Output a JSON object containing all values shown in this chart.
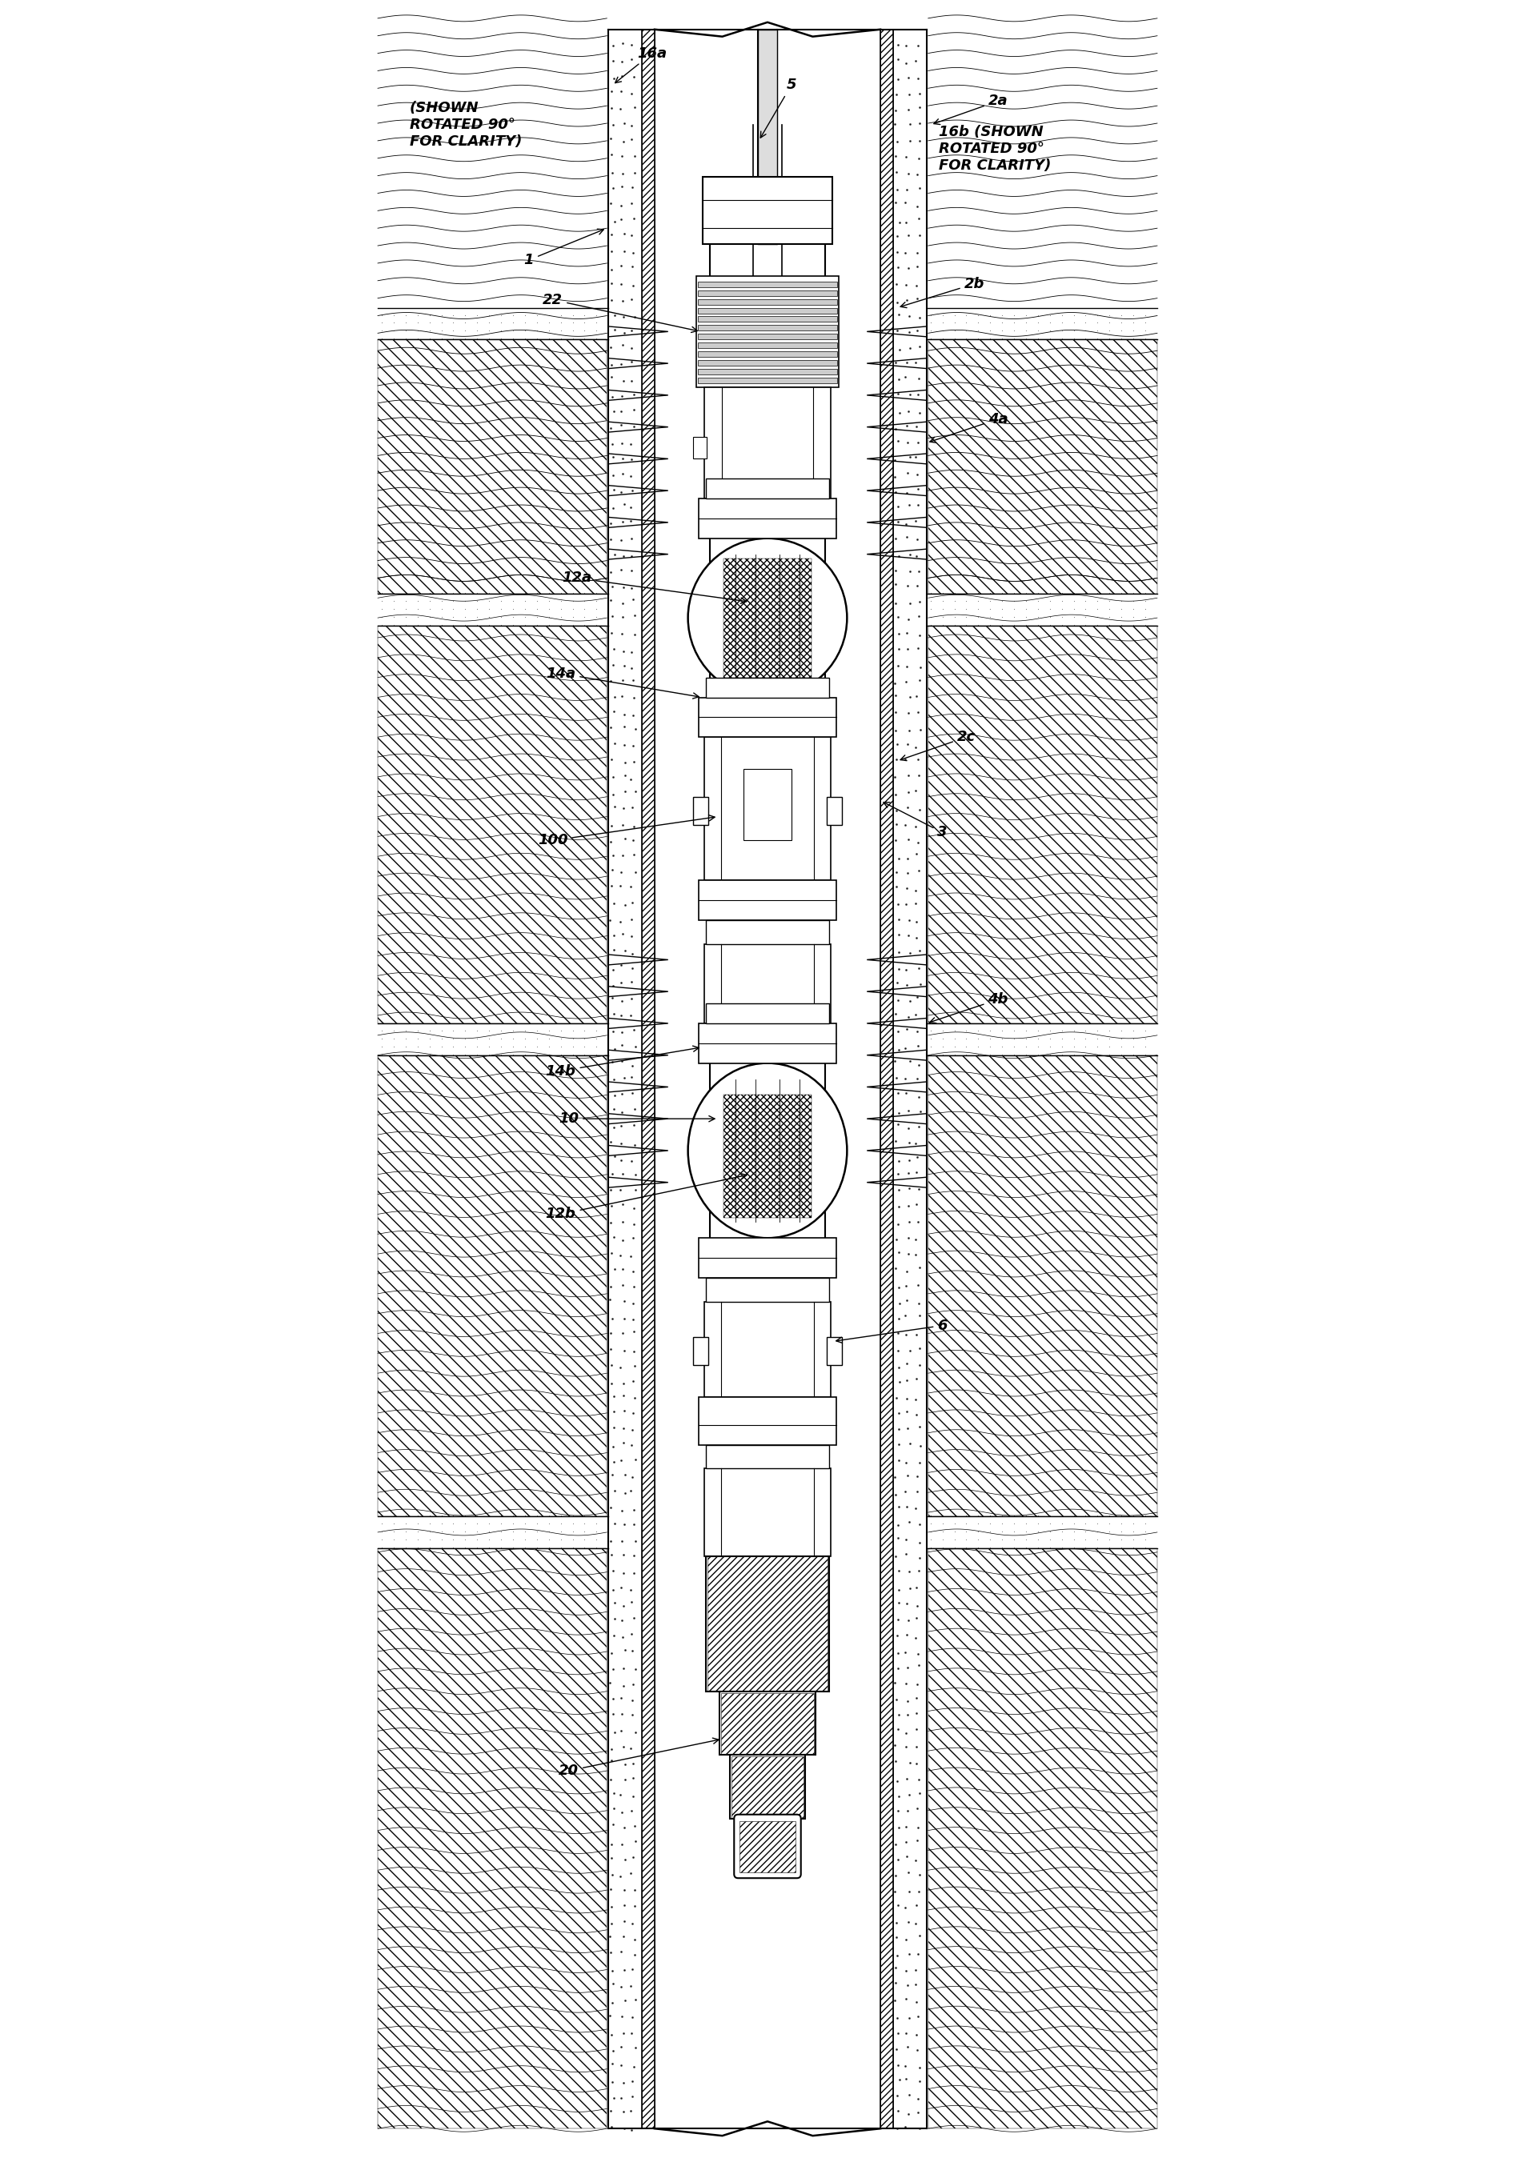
{
  "background_color": "#ffffff",
  "line_color": "#000000",
  "fig_width": 19.18,
  "fig_height": 26.97,
  "labels": {
    "shown_rotated_left": "(SHOWN\nROTATED 90°\nFOR CLARITY)",
    "shown_rotated_right": "16b (SHOWN\nROTATED 90°\nFOR CLARITY)",
    "16a": "16a",
    "1": "1",
    "22": "22",
    "2a": "2a",
    "2b": "2b",
    "4a": "4a",
    "12a": "12a",
    "14a": "14a",
    "2c": "2c",
    "3": "3",
    "100": "100",
    "4b": "4b",
    "10": "10",
    "14b": "14b",
    "6": "6",
    "12b": "12b",
    "20": "20",
    "5": "5"
  },
  "font_size_label": 13,
  "font_size_annotation": 11
}
